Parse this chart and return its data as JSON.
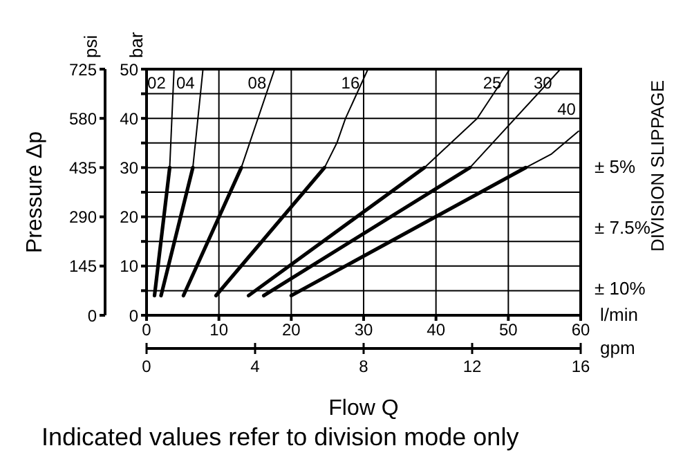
{
  "chart_data": {
    "type": "line",
    "xlabel": "Flow Q",
    "ylabel": "bar",
    "y2label": "psi",
    "xlim": [
      0,
      60
    ],
    "xticks": [
      0,
      10,
      20,
      30,
      40,
      50,
      60
    ],
    "x2lim": [
      0,
      16
    ],
    "x2ticks": [
      0,
      4,
      8,
      12,
      16
    ],
    "ylim": [
      0,
      50
    ],
    "yticks": [
      0,
      {
        "value": 5,
        "label": null
      },
      10,
      {
        "value": 15,
        "label": null
      },
      20,
      {
        "value": 25,
        "label": null
      },
      30,
      {
        "value": 35,
        "label": null
      },
      40,
      {
        "value": 45,
        "label": null
      },
      50
    ],
    "y2lim": [
      0,
      725
    ],
    "y2ticks": [
      0,
      145,
      290,
      435,
      580,
      725
    ],
    "grid": true,
    "marker": "none",
    "line_style": "solid",
    "series": [
      {
        "color": "#000000",
        "x": [
          1.1,
          3.2
        ],
        "values": [
          4,
          30
        ]
      },
      {
        "name": "02",
        "color": "#000000",
        "x": [
          3.2,
          3.8
        ],
        "values": [
          30,
          50
        ]
      },
      {
        "color": "#000000",
        "x": [
          2,
          6.4
        ],
        "values": [
          4,
          30
        ]
      },
      {
        "name": "04",
        "color": "#000000",
        "x": [
          6.4,
          7.8
        ],
        "values": [
          30,
          50
        ]
      },
      {
        "color": "#000000",
        "x": [
          5.1,
          13.1
        ],
        "values": [
          4,
          30
        ]
      },
      {
        "name": "08",
        "color": "#000000",
        "x": [
          13.1,
          17.7
        ],
        "values": [
          30,
          50
        ]
      },
      {
        "color": "#000000",
        "x": [
          9.6,
          24.6
        ],
        "values": [
          4,
          30
        ]
      },
      {
        "name": "16",
        "color": "#000000",
        "x": [
          24.6,
          26.3,
          27.5,
          30.6
        ],
        "values": [
          30,
          35,
          40,
          50
        ]
      },
      {
        "color": "#000000",
        "x": [
          14.1,
          38.4
        ],
        "values": [
          4,
          30
        ]
      },
      {
        "name": "25",
        "color": "#000000",
        "x": [
          38.4,
          45.7,
          50.2
        ],
        "values": [
          30,
          40,
          50
        ]
      },
      {
        "color": "#000000",
        "x": [
          16.2,
          44.7
        ],
        "values": [
          4,
          30
        ]
      },
      {
        "name": "30",
        "color": "#000000",
        "x": [
          44.7,
          57.2
        ],
        "values": [
          30,
          50
        ]
      },
      {
        "color": "#000000",
        "x": [
          20,
          52.4
        ],
        "values": [
          4,
          30
        ]
      },
      {
        "name": "40",
        "color": "#000000",
        "x": [
          52.4,
          55.9,
          59.7
        ],
        "values": [
          30,
          32.7,
          37.4
        ]
      }
    ],
    "annotations": [
      "Pressure Δp",
      "l/min",
      "gpm",
      "DIVISION SLIPPAGE",
      "± 5%",
      "± 7.5%",
      "± 10%",
      "Indicated values refer to division mode only"
    ]
  }
}
